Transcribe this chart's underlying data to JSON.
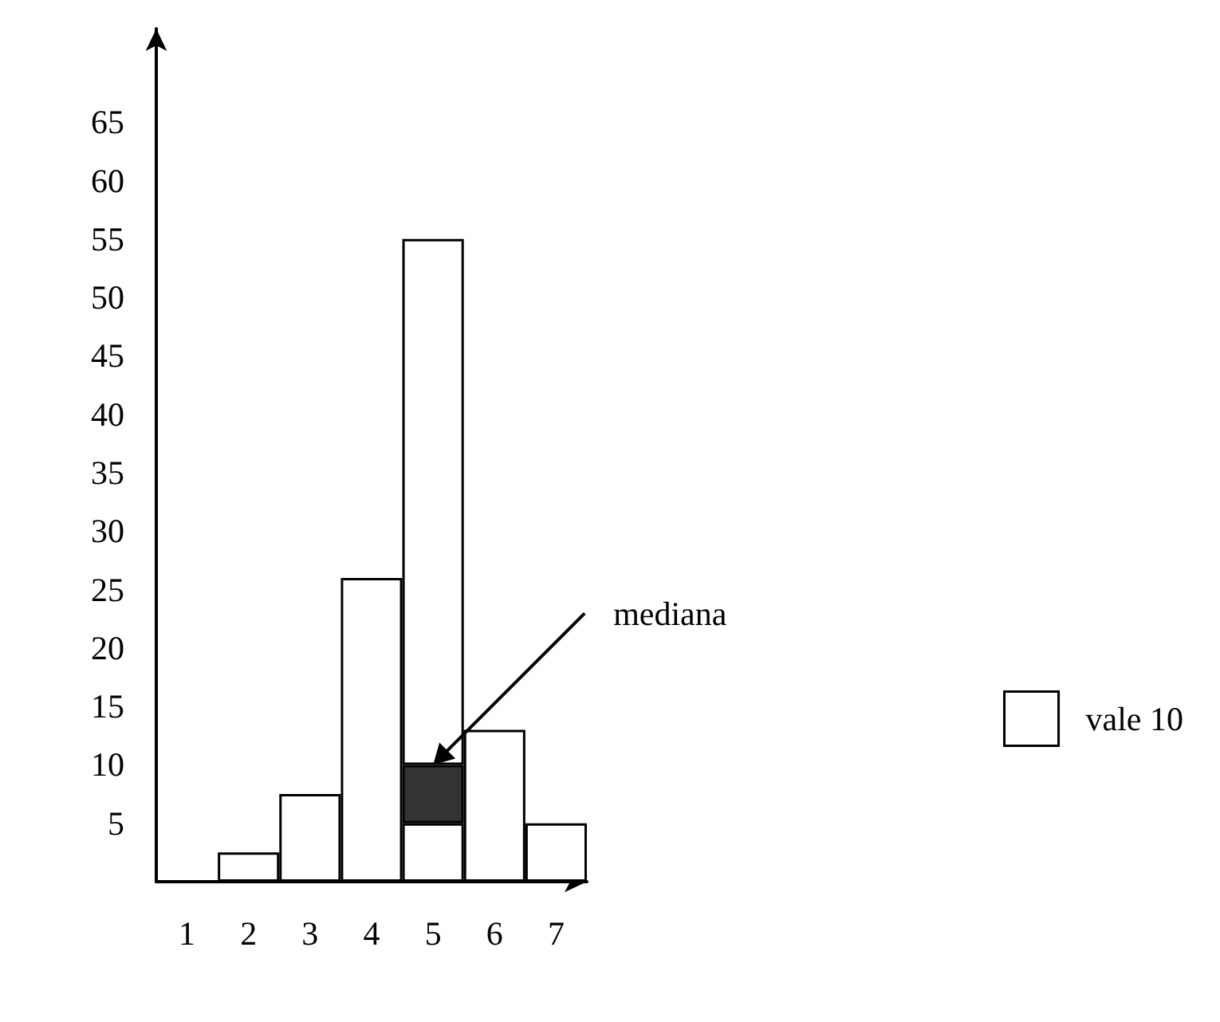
{
  "chart_data": {
    "type": "bar",
    "stacked": true,
    "categories": [
      "1",
      "2",
      "3",
      "4",
      "5",
      "6",
      "7"
    ],
    "series": [
      {
        "name": "vale 10",
        "color": "#ffffff",
        "values": [
          null,
          2.5,
          7.5,
          26,
          5,
          13,
          5
        ]
      },
      {
        "color": "#333333",
        "values": [
          null,
          null,
          null,
          null,
          5,
          null,
          null
        ]
      },
      {
        "color": "#ffffff",
        "values": [
          null,
          null,
          null,
          null,
          45,
          null,
          null
        ]
      }
    ],
    "ylim": [
      0,
      73
    ],
    "yticks": [
      5,
      10,
      15,
      20,
      25,
      30,
      35,
      40,
      45,
      50,
      55,
      60,
      65
    ],
    "annotations": [
      {
        "text": "mediana",
        "x": "5",
        "y": 10
      }
    ],
    "legend": "right",
    "grid": false
  }
}
